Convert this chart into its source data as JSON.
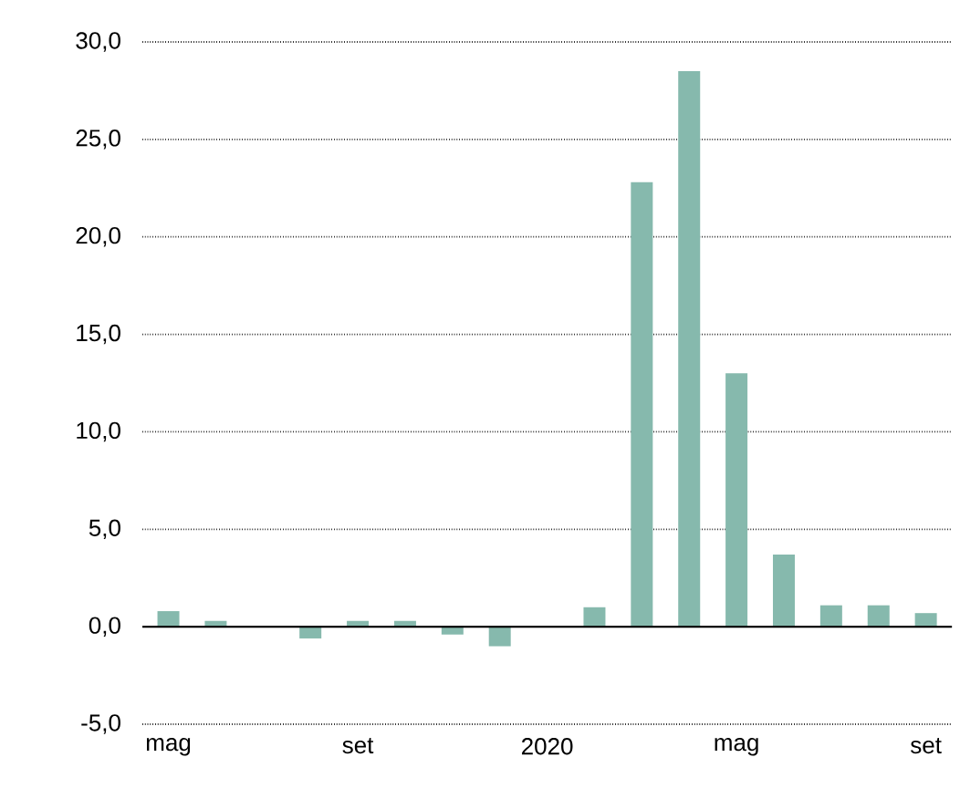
{
  "chart_data": {
    "type": "bar",
    "categories": [
      "mag",
      null,
      null,
      null,
      "set",
      null,
      null,
      null,
      "2020",
      null,
      null,
      null,
      "mag",
      null,
      null,
      null,
      "set"
    ],
    "values": [
      0.8,
      0.3,
      0.0,
      -0.6,
      0.3,
      0.3,
      -0.4,
      -1.0,
      0.0,
      1.0,
      22.8,
      28.5,
      13.0,
      3.7,
      1.1,
      1.1,
      0.7
    ],
    "color": "#86b9ad",
    "ylim": [
      -5,
      30
    ],
    "yticks": [
      {
        "value": -5,
        "label": "-5,0"
      },
      {
        "value": 0,
        "label": "0,0"
      },
      {
        "value": 5,
        "label": "5,0"
      },
      {
        "value": 10,
        "label": "10,0"
      },
      {
        "value": 15,
        "label": "15,0"
      },
      {
        "value": 20,
        "label": "20,0"
      },
      {
        "value": 25,
        "label": "25,0"
      },
      {
        "value": 30,
        "label": "30,0"
      }
    ],
    "grid": "y"
  }
}
